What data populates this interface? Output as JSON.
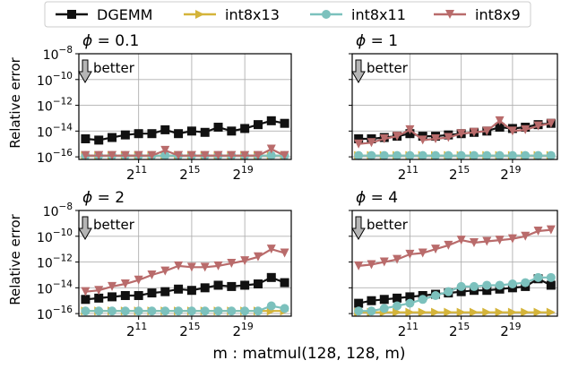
{
  "figure": {
    "xlabel_text": "m : matmul(128, 128, m)",
    "ylabel_text": "Relative error",
    "better_label": "better"
  },
  "legend": [
    {
      "name": "DGEMM",
      "color": "#111111",
      "marker": "square"
    },
    {
      "name": "int8x13",
      "color": "#d4b43a",
      "marker": "triangle-right"
    },
    {
      "name": "int8x11",
      "color": "#7cc1bd",
      "marker": "circle"
    },
    {
      "name": "int8x9",
      "color": "#b96b6b",
      "marker": "triangle-down"
    }
  ],
  "chart_data": [
    {
      "type": "line",
      "title": "ϕ = 0.1",
      "xscale": "log2",
      "yscale": "log10",
      "xlim_exp": [
        6.5,
        22.5
      ],
      "ylim_exp": [
        -16.2,
        -8
      ],
      "xticks": [
        "2^11",
        "2^15",
        "2^19"
      ],
      "yticks": [
        "10^-8",
        "10^-10",
        "10^-12",
        "10^-14",
        "10^-16"
      ],
      "grid": true,
      "x_exp": [
        7,
        8,
        9,
        10,
        11,
        12,
        13,
        14,
        15,
        16,
        17,
        18,
        19,
        20,
        21,
        22
      ],
      "series": [
        {
          "name": "DGEMM",
          "log10_values": [
            -14.6,
            -14.7,
            -14.5,
            -14.3,
            -14.2,
            -14.2,
            -13.9,
            -14.2,
            -14.0,
            -14.1,
            -13.7,
            -14.0,
            -13.8,
            -13.5,
            -13.2,
            -13.4
          ]
        },
        {
          "name": "int8x13",
          "log10_values": [
            -15.9,
            -15.9,
            -15.9,
            -15.9,
            -15.9,
            -15.9,
            -15.9,
            -15.9,
            -15.9,
            -15.9,
            -15.9,
            -15.9,
            -15.9,
            -15.9,
            -15.9,
            -15.9
          ]
        },
        {
          "name": "int8x11",
          "log10_values": [
            -15.9,
            -15.9,
            -15.9,
            -15.9,
            -15.9,
            -15.9,
            -15.9,
            -15.9,
            -15.9,
            -15.9,
            -15.9,
            -15.9,
            -15.9,
            -15.9,
            -15.9,
            -15.9
          ]
        },
        {
          "name": "int8x9",
          "log10_values": [
            -15.9,
            -15.9,
            -15.9,
            -15.9,
            -15.9,
            -15.9,
            -15.5,
            -15.9,
            -15.9,
            -15.9,
            -15.9,
            -15.9,
            -15.9,
            -15.9,
            -15.4,
            -15.9
          ]
        }
      ]
    },
    {
      "type": "line",
      "title": "ϕ = 1",
      "xscale": "log2",
      "yscale": "log10",
      "xlim_exp": [
        6.5,
        22.5
      ],
      "ylim_exp": [
        -16.2,
        -8
      ],
      "xticks": [
        "2^11",
        "2^15",
        "2^19"
      ],
      "yticks": [
        "10^-8",
        "10^-10",
        "10^-12",
        "10^-14",
        "10^-16"
      ],
      "grid": true,
      "x_exp": [
        7,
        8,
        9,
        10,
        11,
        12,
        13,
        14,
        15,
        16,
        17,
        18,
        19,
        20,
        21,
        22
      ],
      "series": [
        {
          "name": "DGEMM",
          "log10_values": [
            -14.6,
            -14.6,
            -14.5,
            -14.4,
            -14.2,
            -14.4,
            -14.4,
            -14.3,
            -14.2,
            -14.1,
            -14.0,
            -13.7,
            -13.8,
            -13.7,
            -13.5,
            -13.4
          ]
        },
        {
          "name": "int8x13",
          "log10_values": [
            -15.9,
            -15.9,
            -15.9,
            -15.9,
            -15.9,
            -15.9,
            -15.9,
            -15.9,
            -15.9,
            -15.9,
            -15.9,
            -15.9,
            -15.9,
            -15.9,
            -15.9,
            -15.9
          ]
        },
        {
          "name": "int8x11",
          "log10_values": [
            -15.9,
            -15.9,
            -15.9,
            -15.9,
            -15.9,
            -15.9,
            -15.9,
            -15.9,
            -15.9,
            -15.9,
            -15.9,
            -15.9,
            -15.9,
            -15.9,
            -15.9,
            -15.9
          ]
        },
        {
          "name": "int8x9",
          "log10_values": [
            -15.0,
            -14.9,
            -14.6,
            -14.4,
            -13.9,
            -14.7,
            -14.6,
            -14.5,
            -14.2,
            -14.1,
            -14.0,
            -13.2,
            -14.0,
            -13.9,
            -13.6,
            -13.4
          ]
        }
      ]
    },
    {
      "type": "line",
      "title": "ϕ = 2",
      "xscale": "log2",
      "yscale": "log10",
      "xlim_exp": [
        6.5,
        22.5
      ],
      "ylim_exp": [
        -16.2,
        -8
      ],
      "xticks": [
        "2^11",
        "2^15",
        "2^19"
      ],
      "yticks": [
        "10^-8",
        "10^-10",
        "10^-12",
        "10^-14",
        "10^-16"
      ],
      "grid": true,
      "x_exp": [
        7,
        8,
        9,
        10,
        11,
        12,
        13,
        14,
        15,
        16,
        17,
        18,
        19,
        20,
        21,
        22
      ],
      "series": [
        {
          "name": "DGEMM",
          "log10_values": [
            -14.9,
            -14.8,
            -14.7,
            -14.6,
            -14.6,
            -14.4,
            -14.3,
            -14.1,
            -14.2,
            -14.0,
            -13.8,
            -13.9,
            -13.8,
            -13.7,
            -13.2,
            -13.6
          ]
        },
        {
          "name": "int8x13",
          "log10_values": [
            -15.8,
            -15.8,
            -15.8,
            -15.8,
            -15.8,
            -15.8,
            -15.8,
            -15.8,
            -15.8,
            -15.8,
            -15.8,
            -15.8,
            -15.8,
            -15.8,
            -15.8,
            -15.8
          ]
        },
        {
          "name": "int8x11",
          "log10_values": [
            -15.8,
            -15.8,
            -15.8,
            -15.8,
            -15.8,
            -15.8,
            -15.8,
            -15.8,
            -15.8,
            -15.8,
            -15.8,
            -15.8,
            -15.8,
            -15.8,
            -15.4,
            -15.6
          ]
        },
        {
          "name": "int8x9",
          "log10_values": [
            -14.3,
            -14.2,
            -13.9,
            -13.7,
            -13.4,
            -13.0,
            -12.7,
            -12.3,
            -12.4,
            -12.4,
            -12.3,
            -12.1,
            -11.9,
            -11.6,
            -11.0,
            -11.3
          ]
        }
      ]
    },
    {
      "type": "line",
      "title": "ϕ = 4",
      "xscale": "log2",
      "yscale": "log10",
      "xlim_exp": [
        6.5,
        22.5
      ],
      "ylim_exp": [
        -16.2,
        -8
      ],
      "xticks": [
        "2^11",
        "2^15",
        "2^19"
      ],
      "yticks": [
        "10^-8",
        "10^-10",
        "10^-12",
        "10^-14",
        "10^-16"
      ],
      "grid": true,
      "x_exp": [
        7,
        8,
        9,
        10,
        11,
        12,
        13,
        14,
        15,
        16,
        17,
        18,
        19,
        20,
        21,
        22
      ],
      "series": [
        {
          "name": "DGEMM",
          "log10_values": [
            -15.2,
            -15.0,
            -14.9,
            -14.8,
            -14.7,
            -14.6,
            -14.5,
            -14.4,
            -14.3,
            -14.2,
            -14.2,
            -14.1,
            -14.0,
            -13.9,
            -13.3,
            -13.8
          ]
        },
        {
          "name": "int8x13",
          "log10_values": [
            -15.9,
            -15.9,
            -15.9,
            -15.9,
            -15.9,
            -15.9,
            -15.9,
            -15.9,
            -15.9,
            -15.9,
            -15.9,
            -15.9,
            -15.9,
            -15.9,
            -15.9,
            -15.9
          ]
        },
        {
          "name": "int8x11",
          "log10_values": [
            -15.8,
            -15.8,
            -15.6,
            -15.4,
            -15.2,
            -14.9,
            -14.6,
            -14.3,
            -13.9,
            -13.9,
            -13.8,
            -13.8,
            -13.7,
            -13.6,
            -13.2,
            -13.2
          ]
        },
        {
          "name": "int8x9",
          "log10_values": [
            -12.3,
            -12.2,
            -12.0,
            -11.8,
            -11.4,
            -11.3,
            -11.0,
            -10.7,
            -10.3,
            -10.5,
            -10.4,
            -10.3,
            -10.2,
            -10.0,
            -9.6,
            -9.5
          ]
        }
      ]
    }
  ]
}
